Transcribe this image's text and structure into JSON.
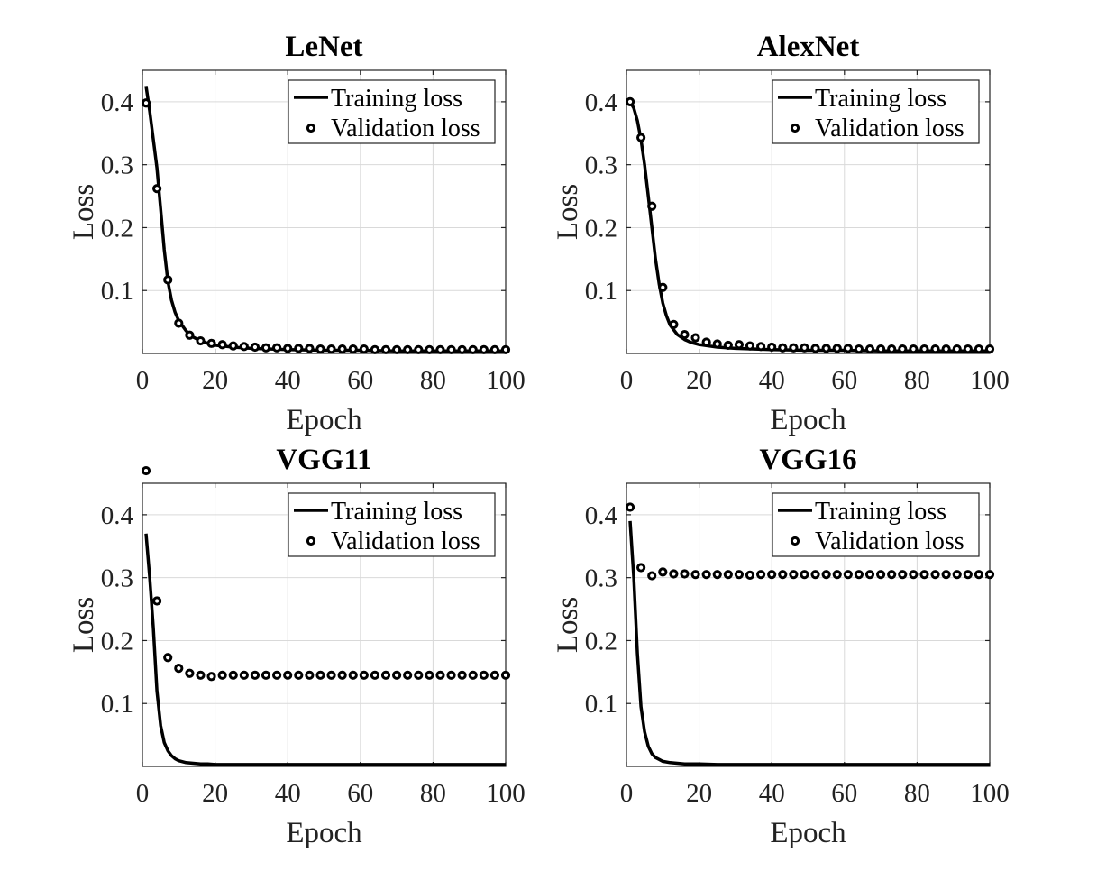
{
  "chart_data": [
    {
      "type": "line",
      "title": "LeNet",
      "xlabel": "Epoch",
      "ylabel": "Loss",
      "xlim": [
        0,
        100
      ],
      "ylim": [
        0,
        0.45
      ],
      "xticks": [
        0,
        20,
        40,
        60,
        80,
        100
      ],
      "yticks": [
        0.1,
        0.2,
        0.3,
        0.4
      ],
      "grid": true,
      "legend": "top-right",
      "series": [
        {
          "name": "Training loss",
          "style": "line",
          "x": [
            1,
            2,
            3,
            4,
            5,
            6,
            7,
            8,
            9,
            10,
            12,
            14,
            16,
            18,
            20,
            25,
            30,
            40,
            50,
            60,
            70,
            80,
            90,
            100
          ],
          "y": [
            0.425,
            0.385,
            0.34,
            0.295,
            0.23,
            0.165,
            0.115,
            0.085,
            0.065,
            0.052,
            0.036,
            0.026,
            0.02,
            0.016,
            0.013,
            0.01,
            0.008,
            0.006,
            0.005,
            0.005,
            0.004,
            0.004,
            0.004,
            0.004
          ]
        },
        {
          "name": "Validation loss",
          "style": "markers",
          "x": [
            1,
            4,
            7,
            10,
            13,
            16,
            19,
            22,
            25,
            28,
            31,
            34,
            37,
            40,
            43,
            46,
            49,
            52,
            55,
            58,
            61,
            64,
            67,
            70,
            73,
            76,
            79,
            82,
            85,
            88,
            91,
            94,
            97,
            100
          ],
          "y": [
            0.398,
            0.262,
            0.117,
            0.048,
            0.029,
            0.02,
            0.016,
            0.014,
            0.012,
            0.011,
            0.01,
            0.009,
            0.009,
            0.008,
            0.008,
            0.008,
            0.007,
            0.007,
            0.007,
            0.007,
            0.007,
            0.006,
            0.006,
            0.006,
            0.006,
            0.006,
            0.006,
            0.006,
            0.006,
            0.006,
            0.006,
            0.006,
            0.006,
            0.006
          ]
        }
      ]
    },
    {
      "type": "line",
      "title": "AlexNet",
      "xlabel": "Epoch",
      "ylabel": "Loss",
      "xlim": [
        0,
        100
      ],
      "ylim": [
        0,
        0.45
      ],
      "xticks": [
        0,
        20,
        40,
        60,
        80,
        100
      ],
      "yticks": [
        0.1,
        0.2,
        0.3,
        0.4
      ],
      "grid": true,
      "legend": "top-right",
      "series": [
        {
          "name": "Training loss",
          "style": "line",
          "x": [
            1,
            2,
            3,
            4,
            5,
            6,
            7,
            8,
            9,
            10,
            11,
            12,
            14,
            16,
            18,
            20,
            25,
            30,
            40,
            50,
            60,
            70,
            80,
            90,
            100
          ],
          "y": [
            0.4,
            0.39,
            0.37,
            0.34,
            0.3,
            0.25,
            0.2,
            0.15,
            0.11,
            0.08,
            0.06,
            0.045,
            0.03,
            0.022,
            0.017,
            0.014,
            0.01,
            0.008,
            0.006,
            0.005,
            0.005,
            0.004,
            0.004,
            0.004,
            0.004
          ]
        },
        {
          "name": "Validation loss",
          "style": "markers",
          "x": [
            1,
            4,
            7,
            10,
            13,
            16,
            19,
            22,
            25,
            28,
            31,
            34,
            37,
            40,
            43,
            46,
            49,
            52,
            55,
            58,
            61,
            64,
            67,
            70,
            73,
            76,
            79,
            82,
            85,
            88,
            91,
            94,
            97,
            100
          ],
          "y": [
            0.4,
            0.343,
            0.234,
            0.105,
            0.046,
            0.03,
            0.025,
            0.018,
            0.015,
            0.013,
            0.014,
            0.012,
            0.011,
            0.01,
            0.009,
            0.009,
            0.009,
            0.008,
            0.008,
            0.008,
            0.008,
            0.007,
            0.007,
            0.007,
            0.007,
            0.007,
            0.007,
            0.007,
            0.007,
            0.007,
            0.007,
            0.007,
            0.007,
            0.007
          ]
        }
      ]
    },
    {
      "type": "line",
      "title": "VGG11",
      "xlabel": "Epoch",
      "ylabel": "Loss",
      "xlim": [
        0,
        100
      ],
      "ylim": [
        0,
        0.45
      ],
      "xticks": [
        0,
        20,
        40,
        60,
        80,
        100
      ],
      "yticks": [
        0.1,
        0.2,
        0.3,
        0.4
      ],
      "grid": true,
      "legend": "top-right",
      "series": [
        {
          "name": "Training loss",
          "style": "line",
          "x": [
            1,
            2,
            3,
            4,
            5,
            6,
            7,
            8,
            9,
            10,
            12,
            14,
            16,
            18,
            20,
            25,
            30,
            40,
            50,
            60,
            70,
            80,
            90,
            100
          ],
          "y": [
            0.37,
            0.3,
            0.22,
            0.12,
            0.065,
            0.038,
            0.025,
            0.017,
            0.012,
            0.009,
            0.006,
            0.005,
            0.004,
            0.004,
            0.003,
            0.003,
            0.003,
            0.003,
            0.003,
            0.003,
            0.003,
            0.003,
            0.003,
            0.003
          ]
        },
        {
          "name": "Validation loss",
          "style": "markers",
          "x": [
            1,
            4,
            7,
            10,
            13,
            16,
            19,
            22,
            25,
            28,
            31,
            34,
            37,
            40,
            43,
            46,
            49,
            52,
            55,
            58,
            61,
            64,
            67,
            70,
            73,
            76,
            79,
            82,
            85,
            88,
            91,
            94,
            97,
            100
          ],
          "y": [
            0.47,
            0.263,
            0.173,
            0.156,
            0.148,
            0.145,
            0.143,
            0.145,
            0.145,
            0.145,
            0.145,
            0.145,
            0.145,
            0.145,
            0.145,
            0.145,
            0.145,
            0.145,
            0.145,
            0.145,
            0.145,
            0.145,
            0.145,
            0.145,
            0.145,
            0.145,
            0.145,
            0.145,
            0.145,
            0.145,
            0.145,
            0.145,
            0.145,
            0.145
          ]
        }
      ]
    },
    {
      "type": "line",
      "title": "VGG16",
      "xlabel": "Epoch",
      "ylabel": "Loss",
      "xlim": [
        0,
        100
      ],
      "ylim": [
        0,
        0.45
      ],
      "xticks": [
        0,
        20,
        40,
        60,
        80,
        100
      ],
      "yticks": [
        0.1,
        0.2,
        0.3,
        0.4
      ],
      "grid": true,
      "legend": "top-right",
      "series": [
        {
          "name": "Training loss",
          "style": "line",
          "x": [
            1,
            2,
            3,
            4,
            5,
            6,
            7,
            8,
            9,
            10,
            12,
            14,
            16,
            18,
            20,
            25,
            30,
            40,
            50,
            60,
            70,
            80,
            90,
            100
          ],
          "y": [
            0.39,
            0.3,
            0.18,
            0.095,
            0.055,
            0.032,
            0.02,
            0.014,
            0.011,
            0.008,
            0.006,
            0.005,
            0.004,
            0.004,
            0.004,
            0.003,
            0.003,
            0.003,
            0.003,
            0.003,
            0.003,
            0.003,
            0.003,
            0.003
          ]
        },
        {
          "name": "Validation loss",
          "style": "markers",
          "x": [
            1,
            4,
            7,
            10,
            13,
            16,
            19,
            22,
            25,
            28,
            31,
            34,
            37,
            40,
            43,
            46,
            49,
            52,
            55,
            58,
            61,
            64,
            67,
            70,
            73,
            76,
            79,
            82,
            85,
            88,
            91,
            94,
            97,
            100
          ],
          "y": [
            0.412,
            0.316,
            0.303,
            0.309,
            0.306,
            0.306,
            0.305,
            0.305,
            0.305,
            0.305,
            0.305,
            0.304,
            0.305,
            0.305,
            0.305,
            0.305,
            0.305,
            0.305,
            0.305,
            0.305,
            0.305,
            0.305,
            0.305,
            0.305,
            0.305,
            0.305,
            0.305,
            0.305,
            0.305,
            0.305,
            0.305,
            0.305,
            0.305,
            0.305
          ]
        }
      ]
    }
  ]
}
